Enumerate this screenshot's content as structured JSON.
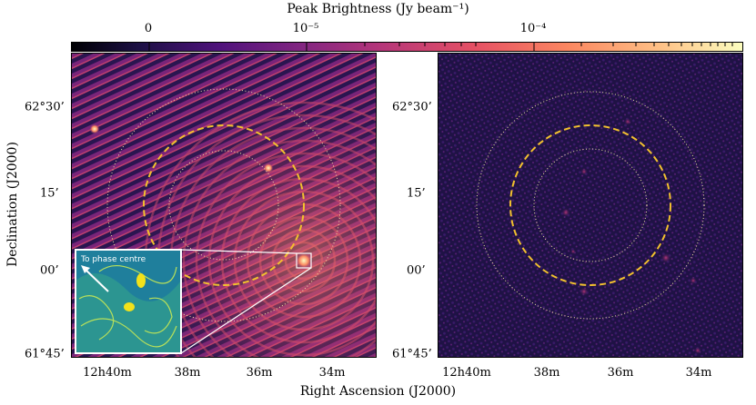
{
  "colorbar": {
    "title": "Peak Brightness (Jy beam⁻¹)",
    "tick_labels": [
      "0",
      "10⁻⁵",
      "10⁻⁴"
    ],
    "colormap": "magma",
    "colors": [
      "#000004",
      "#4f127b",
      "#b5367a",
      "#fb8761",
      "#fcfdbf"
    ]
  },
  "axes": {
    "y_title": "Declination (J2000)",
    "x_title": "Right Ascension (J2000)",
    "dec_ticks": [
      "62°30’",
      "15’",
      "00’",
      "61°45’"
    ],
    "ra_ticks": [
      "12h40m",
      "38m",
      "36m",
      "34m"
    ]
  },
  "panels": {
    "left": {
      "name": "before-subtraction",
      "inset_label": "To phase centre",
      "circle_color": "#f2c12e",
      "background": "#2a1550"
    },
    "right": {
      "name": "after-subtraction",
      "circle_color": "#f2c12e",
      "background": "#1f1245"
    }
  }
}
